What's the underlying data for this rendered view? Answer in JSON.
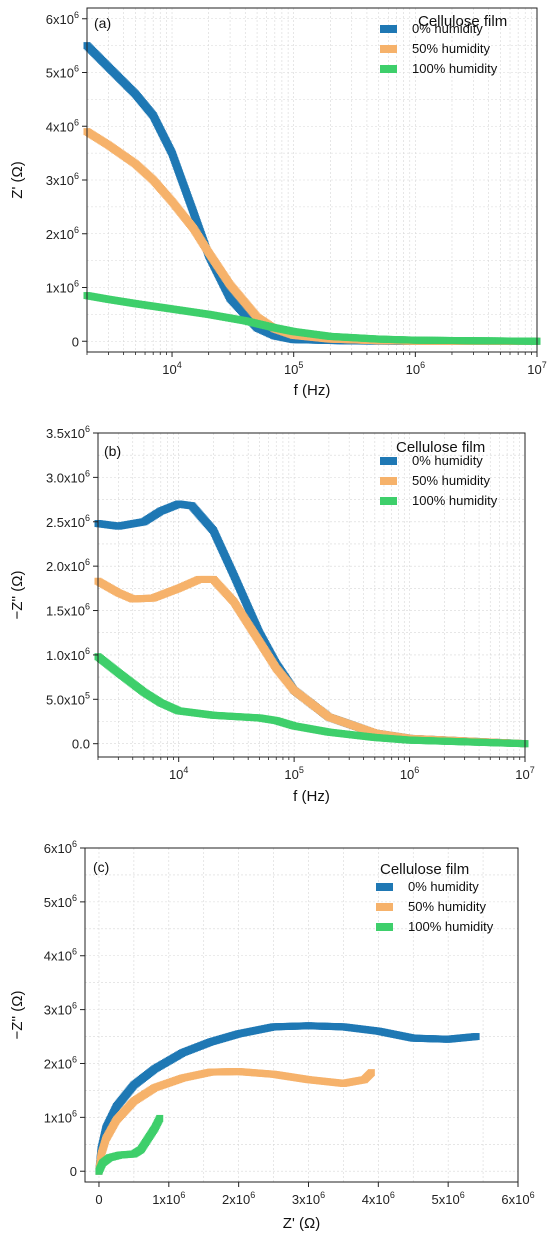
{
  "colors": {
    "dry": "#1f78b4",
    "mid": "#f6b26b",
    "wet": "#3ecf6b"
  },
  "chart_data": [
    {
      "panel": "(a)",
      "type": "scatter",
      "xscale": "log",
      "xlim": [
        2000,
        10000000
      ],
      "ylim": [
        -200000,
        6200000
      ],
      "xlabel": "f (Hz)",
      "ylabel": "Z' (Ω)",
      "xticks": [
        {
          "v": 10000,
          "m": "10",
          "e": "4"
        },
        {
          "v": 100000,
          "m": "10",
          "e": "5"
        },
        {
          "v": 1000000,
          "m": "10",
          "e": "6"
        },
        {
          "v": 10000000,
          "m": "10",
          "e": "7"
        }
      ],
      "yticks": [
        {
          "v": 0,
          "m": "0",
          "e": ""
        },
        {
          "v": 1000000,
          "m": "1x10",
          "e": "6"
        },
        {
          "v": 2000000,
          "m": "2x10",
          "e": "6"
        },
        {
          "v": 3000000,
          "m": "3x10",
          "e": "6"
        },
        {
          "v": 4000000,
          "m": "4x10",
          "e": "6"
        },
        {
          "v": 5000000,
          "m": "5x10",
          "e": "6"
        },
        {
          "v": 6000000,
          "m": "6x10",
          "e": "6"
        }
      ],
      "legend": {
        "title": "Cellulose film",
        "position": "top-right"
      },
      "series": [
        {
          "name": "0% humidity",
          "color": "#1f78b4",
          "points": [
            [
              2000,
              5500000
            ],
            [
              3000,
              5100000
            ],
            [
              5000,
              4600000
            ],
            [
              7000,
              4200000
            ],
            [
              10000,
              3500000
            ],
            [
              15000,
              2400000
            ],
            [
              20000,
              1600000
            ],
            [
              30000,
              800000
            ],
            [
              50000,
              250000
            ],
            [
              70000,
              100000
            ],
            [
              100000,
              30000
            ],
            [
              300000,
              5000
            ],
            [
              1000000,
              0
            ],
            [
              10000000,
              0
            ]
          ]
        },
        {
          "name": "50% humidity",
          "color": "#f6b26b",
          "points": [
            [
              2000,
              3900000
            ],
            [
              3000,
              3650000
            ],
            [
              5000,
              3300000
            ],
            [
              7000,
              3000000
            ],
            [
              10000,
              2600000
            ],
            [
              15000,
              2100000
            ],
            [
              20000,
              1650000
            ],
            [
              30000,
              1050000
            ],
            [
              50000,
              450000
            ],
            [
              70000,
              230000
            ],
            [
              100000,
              110000
            ],
            [
              200000,
              40000
            ],
            [
              500000,
              10000
            ],
            [
              1000000,
              0
            ],
            [
              10000000,
              0
            ]
          ]
        },
        {
          "name": "100% humidity",
          "color": "#3ecf6b",
          "points": [
            [
              2000,
              850000
            ],
            [
              3000,
              780000
            ],
            [
              5000,
              700000
            ],
            [
              10000,
              600000
            ],
            [
              20000,
              500000
            ],
            [
              40000,
              380000
            ],
            [
              70000,
              250000
            ],
            [
              100000,
              180000
            ],
            [
              200000,
              90000
            ],
            [
              500000,
              40000
            ],
            [
              1000000,
              20000
            ],
            [
              10000000,
              0
            ]
          ]
        }
      ]
    },
    {
      "panel": "(b)",
      "type": "scatter",
      "xscale": "log",
      "xlim": [
        2000,
        10000000
      ],
      "ylim": [
        -150000,
        3500000
      ],
      "xlabel": "f (Hz)",
      "ylabel": "−Z'' (Ω)",
      "xticks": [
        {
          "v": 10000,
          "m": "10",
          "e": "4"
        },
        {
          "v": 100000,
          "m": "10",
          "e": "5"
        },
        {
          "v": 1000000,
          "m": "10",
          "e": "6"
        },
        {
          "v": 10000000,
          "m": "10",
          "e": "7"
        }
      ],
      "yticks": [
        {
          "v": 0,
          "m": "0.0",
          "e": ""
        },
        {
          "v": 500000,
          "m": "5.0x10",
          "e": "5"
        },
        {
          "v": 1000000,
          "m": "1.0x10",
          "e": "6"
        },
        {
          "v": 1500000,
          "m": "1.5x10",
          "e": "6"
        },
        {
          "v": 2000000,
          "m": "2.0x10",
          "e": "6"
        },
        {
          "v": 2500000,
          "m": "2.5x10",
          "e": "6"
        },
        {
          "v": 3000000,
          "m": "3.0x10",
          "e": "6"
        },
        {
          "v": 3500000,
          "m": "3.5x10",
          "e": "6"
        }
      ],
      "legend": {
        "title": "Cellulose film",
        "position": "top-right"
      },
      "series": [
        {
          "name": "0% humidity",
          "color": "#1f78b4",
          "points": [
            [
              2000,
              2480000
            ],
            [
              3000,
              2450000
            ],
            [
              5000,
              2500000
            ],
            [
              7000,
              2620000
            ],
            [
              10000,
              2700000
            ],
            [
              13000,
              2680000
            ],
            [
              20000,
              2400000
            ],
            [
              30000,
              1900000
            ],
            [
              50000,
              1250000
            ],
            [
              70000,
              900000
            ],
            [
              100000,
              600000
            ],
            [
              200000,
              300000
            ],
            [
              500000,
              120000
            ],
            [
              1000000,
              60000
            ],
            [
              10000000,
              0
            ]
          ]
        },
        {
          "name": "50% humidity",
          "color": "#f6b26b",
          "points": [
            [
              2000,
              1830000
            ],
            [
              3000,
              1700000
            ],
            [
              4000,
              1630000
            ],
            [
              6000,
              1640000
            ],
            [
              10000,
              1750000
            ],
            [
              15000,
              1850000
            ],
            [
              20000,
              1850000
            ],
            [
              30000,
              1600000
            ],
            [
              50000,
              1150000
            ],
            [
              70000,
              850000
            ],
            [
              100000,
              600000
            ],
            [
              200000,
              300000
            ],
            [
              500000,
              120000
            ],
            [
              1000000,
              60000
            ],
            [
              10000000,
              0
            ]
          ]
        },
        {
          "name": "100% humidity",
          "color": "#3ecf6b",
          "points": [
            [
              2000,
              980000
            ],
            [
              3000,
              800000
            ],
            [
              5000,
              580000
            ],
            [
              7000,
              460000
            ],
            [
              10000,
              370000
            ],
            [
              20000,
              320000
            ],
            [
              50000,
              290000
            ],
            [
              70000,
              260000
            ],
            [
              100000,
              200000
            ],
            [
              200000,
              130000
            ],
            [
              500000,
              70000
            ],
            [
              1000000,
              40000
            ],
            [
              10000000,
              0
            ]
          ]
        }
      ]
    },
    {
      "panel": "(c)",
      "type": "scatter",
      "xscale": "linear",
      "xlim": [
        -200000,
        6000000
      ],
      "ylim": [
        -200000,
        6000000
      ],
      "xlabel": "Z' (Ω)",
      "ylabel": "−Z'' (Ω)",
      "xticks": [
        {
          "v": 0,
          "m": "0",
          "e": ""
        },
        {
          "v": 1000000,
          "m": "1x10",
          "e": "6"
        },
        {
          "v": 2000000,
          "m": "2x10",
          "e": "6"
        },
        {
          "v": 3000000,
          "m": "3x10",
          "e": "6"
        },
        {
          "v": 4000000,
          "m": "4x10",
          "e": "6"
        },
        {
          "v": 5000000,
          "m": "5x10",
          "e": "6"
        },
        {
          "v": 6000000,
          "m": "6x10",
          "e": "6"
        }
      ],
      "yticks": [
        {
          "v": 0,
          "m": "0",
          "e": ""
        },
        {
          "v": 1000000,
          "m": "1x10",
          "e": "6"
        },
        {
          "v": 2000000,
          "m": "2x10",
          "e": "6"
        },
        {
          "v": 3000000,
          "m": "3x10",
          "e": "6"
        },
        {
          "v": 4000000,
          "m": "4x10",
          "e": "6"
        },
        {
          "v": 5000000,
          "m": "5x10",
          "e": "6"
        },
        {
          "v": 6000000,
          "m": "6x10",
          "e": "6"
        }
      ],
      "legend": {
        "title": "Cellulose film",
        "position": "top-right"
      },
      "series": [
        {
          "name": "0% humidity",
          "color": "#1f78b4",
          "points": [
            [
              0,
              0
            ],
            [
              30000,
              400000
            ],
            [
              100000,
              800000
            ],
            [
              250000,
              1200000
            ],
            [
              500000,
              1600000
            ],
            [
              800000,
              1900000
            ],
            [
              1200000,
              2200000
            ],
            [
              1600000,
              2400000
            ],
            [
              2000,
              0
            ],
            [
              2000000,
              2550000
            ],
            [
              2500000,
              2680000
            ],
            [
              3000000,
              2700000
            ],
            [
              3500000,
              2680000
            ],
            [
              4000000,
              2600000
            ],
            [
              4500000,
              2470000
            ],
            [
              5000000,
              2450000
            ],
            [
              5400000,
              2500000
            ]
          ]
        },
        {
          "name": "50% humidity",
          "color": "#f6b26b",
          "points": [
            [
              0,
              0
            ],
            [
              30000,
              300000
            ],
            [
              100000,
              600000
            ],
            [
              250000,
              950000
            ],
            [
              500000,
              1300000
            ],
            [
              800000,
              1550000
            ],
            [
              1200000,
              1730000
            ],
            [
              1600000,
              1840000
            ],
            [
              2000000,
              1850000
            ],
            [
              2500000,
              1800000
            ],
            [
              3000000,
              1700000
            ],
            [
              3500000,
              1630000
            ],
            [
              3800000,
              1700000
            ],
            [
              3900000,
              1830000
            ]
          ]
        },
        {
          "name": "100% humidity",
          "color": "#3ecf6b",
          "points": [
            [
              0,
              0
            ],
            [
              50000,
              150000
            ],
            [
              150000,
              250000
            ],
            [
              300000,
              300000
            ],
            [
              500000,
              320000
            ],
            [
              600000,
              400000
            ],
            [
              700000,
              600000
            ],
            [
              800000,
              800000
            ],
            [
              870000,
              980000
            ]
          ]
        }
      ]
    }
  ]
}
